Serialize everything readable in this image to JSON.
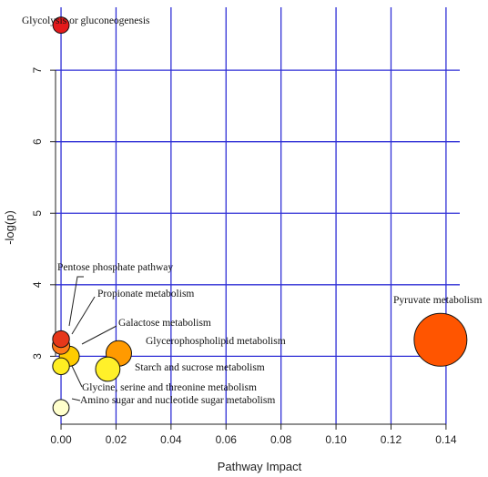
{
  "chart_data": {
    "type": "scatter",
    "xlabel": "Pathway Impact",
    "ylabel": "-log(p)",
    "xlim": [
      -0.002,
      0.145
    ],
    "ylim": [
      2.05,
      7.88
    ],
    "xticks": [
      "0.00",
      "0.02",
      "0.04",
      "0.06",
      "0.08",
      "0.10",
      "0.12",
      "0.14"
    ],
    "yticks": [
      "3",
      "4",
      "5",
      "6",
      "7"
    ],
    "grid": true,
    "grid_color": "#2f2fd6",
    "points": [
      {
        "name": "Glycolysis or gluconeogenesis",
        "x": 0.0,
        "y": 7.63,
        "size": 1.3,
        "color": "#e41a1c"
      },
      {
        "name": "Pentose phosphate pathway",
        "x": 0.0,
        "y": 3.24,
        "size": 1.4,
        "color": "#e6371a"
      },
      {
        "name": "Propionate metabolism",
        "x": 0.0,
        "y": 3.15,
        "size": 1.5,
        "color": "#ff7a1a"
      },
      {
        "name": "Galactose metabolism",
        "x": 0.003,
        "y": 3.0,
        "size": 2.0,
        "color": "#ffcc00"
      },
      {
        "name": "Glycerophospholipid metabolism",
        "x": 0.021,
        "y": 3.04,
        "size": 3.0,
        "color": "#ff9a00"
      },
      {
        "name": "Starch and sucrose metabolism",
        "x": 0.017,
        "y": 2.82,
        "size": 2.8,
        "color": "#fff02a"
      },
      {
        "name": "Glycine, serine and threonine metabolism",
        "x": 0.0,
        "y": 2.86,
        "size": 1.4,
        "color": "#ffee22"
      },
      {
        "name": "Amino sugar and nucleotide sugar metabolism",
        "x": 0.0,
        "y": 2.28,
        "size": 1.3,
        "color": "#ffffcc"
      },
      {
        "name": "Pyruvate metabolism",
        "x": 0.138,
        "y": 3.23,
        "size": 8.0,
        "color": "#ff5500"
      }
    ]
  }
}
